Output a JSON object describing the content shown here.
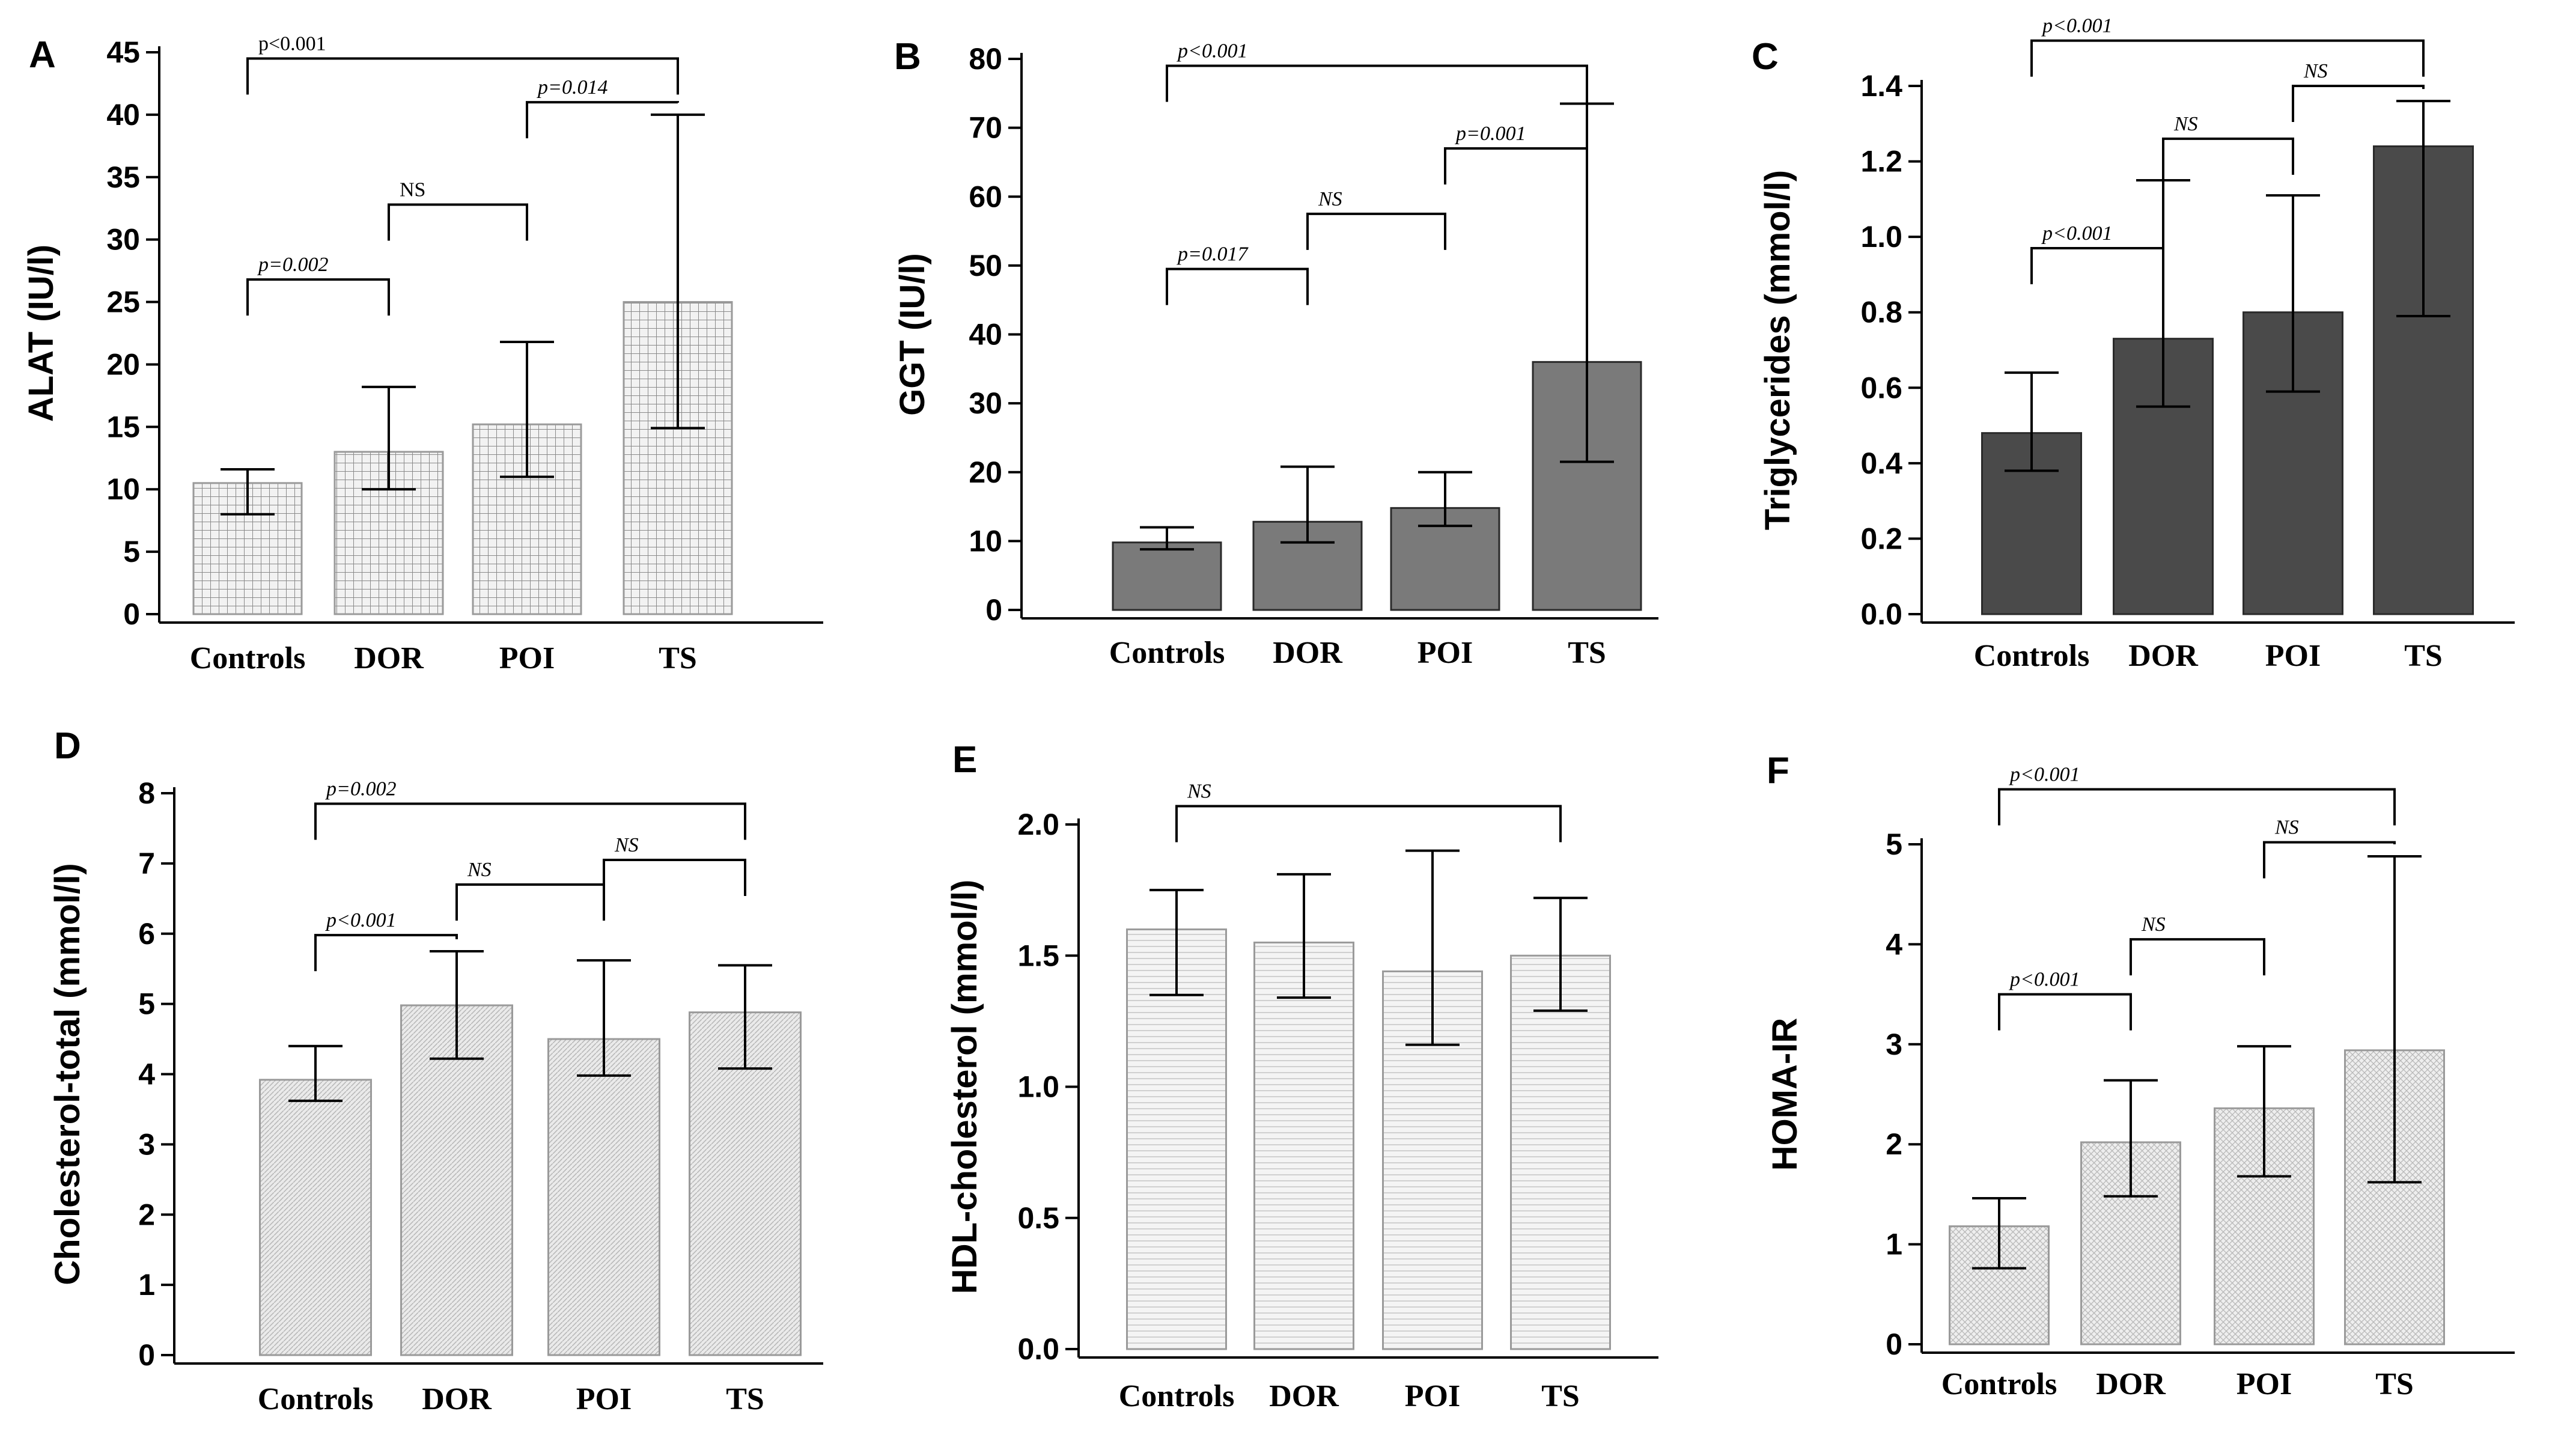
{
  "figure": {
    "note": ""
  },
  "chart_data": [
    {
      "panel": "A",
      "type": "bar",
      "ylabel": "ALAT (IU/l)",
      "categories": [
        "Controls",
        "DOR",
        "POI",
        "TS"
      ],
      "values": [
        10.5,
        13.0,
        15.2,
        25.0
      ],
      "error_low": [
        8.0,
        10.0,
        11.0,
        14.9
      ],
      "error_high": [
        11.6,
        18.2,
        21.8,
        40.0
      ],
      "ylim": [
        0,
        45
      ],
      "yticks": [
        "0",
        "5",
        "10",
        "15",
        "20",
        "25",
        "30",
        "35",
        "40",
        "45"
      ],
      "fill": "grid",
      "bar_color": "#d8d8d8",
      "brackets": [
        {
          "label": "p<0.001",
          "from": 0,
          "to": 3,
          "y": 44.5,
          "italic": false
        },
        {
          "label": "p=0.002",
          "from": 0,
          "to": 1,
          "y": 26.8,
          "italic": true
        },
        {
          "label": "NS",
          "from": 1,
          "to": 2,
          "y": 32.8,
          "italic": false
        },
        {
          "label": "p=0.014",
          "from": 2,
          "to": 3,
          "y": 41.0,
          "italic": true
        }
      ]
    },
    {
      "panel": "B",
      "type": "bar",
      "ylabel": "GGT (IU/l)",
      "categories": [
        "Controls",
        "DOR",
        "POI",
        "TS"
      ],
      "values": [
        9.8,
        12.8,
        14.8,
        36.0
      ],
      "error_low": [
        8.8,
        9.8,
        12.2,
        21.5
      ],
      "error_high": [
        12.0,
        20.8,
        20.0,
        73.5
      ],
      "ylim": [
        0,
        80
      ],
      "yticks": [
        "0",
        "10",
        "20",
        "30",
        "40",
        "50",
        "60",
        "70",
        "80"
      ],
      "fill": "solid",
      "bar_color": "#7a7a7a",
      "brackets": [
        {
          "label": "p<0.001",
          "from": 0,
          "to": 3,
          "y": 79.0,
          "italic": true
        },
        {
          "label": "p=0.017",
          "from": 0,
          "to": 1,
          "y": 49.5,
          "italic": true
        },
        {
          "label": "NS",
          "from": 1,
          "to": 2,
          "y": 57.5,
          "italic": true
        },
        {
          "label": "p=0.001",
          "from": 2,
          "to": 3,
          "y": 67.0,
          "italic": true
        }
      ]
    },
    {
      "panel": "C",
      "type": "bar",
      "ylabel": "Triglycerides (mmol/l)",
      "categories": [
        "Controls",
        "DOR",
        "POI",
        "TS"
      ],
      "values": [
        0.48,
        0.73,
        0.8,
        1.24
      ],
      "error_low": [
        0.38,
        0.55,
        0.59,
        0.79
      ],
      "error_high": [
        0.64,
        1.15,
        1.11,
        1.36
      ],
      "ylim": [
        0,
        1.4
      ],
      "yticks": [
        "0.0",
        "0.2",
        "0.4",
        "0.6",
        "0.8",
        "1.0",
        "1.2",
        "1.4"
      ],
      "fill": "solid",
      "bar_color": "#4a4a4a",
      "brackets": [
        {
          "label": "p<0.001",
          "from": 0,
          "to": 3,
          "y": 1.52,
          "italic": true
        },
        {
          "label": "p<0.001",
          "from": 0,
          "to": 1,
          "y": 0.97,
          "italic": true
        },
        {
          "label": "NS",
          "from": 1,
          "to": 2,
          "y": 1.26,
          "italic": true
        },
        {
          "label": "NS",
          "from": 2,
          "to": 3,
          "y": 1.4,
          "italic": true
        }
      ]
    },
    {
      "panel": "D",
      "type": "bar",
      "ylabel": "Cholesterol-total (mmol/l)",
      "categories": [
        "Controls",
        "DOR",
        "POI",
        "TS"
      ],
      "values": [
        3.92,
        4.98,
        4.5,
        4.88
      ],
      "error_low": [
        3.62,
        4.22,
        3.98,
        4.08
      ],
      "error_high": [
        4.4,
        5.75,
        5.62,
        5.55
      ],
      "ylim": [
        0,
        8
      ],
      "yticks": [
        "0",
        "1",
        "2",
        "3",
        "4",
        "5",
        "6",
        "7",
        "8"
      ],
      "fill": "fine",
      "bar_color": "#e6e6e6",
      "brackets": [
        {
          "label": "p=0.002",
          "from": 0,
          "to": 3,
          "y": 7.85,
          "italic": true
        },
        {
          "label": "p<0.001",
          "from": 0,
          "to": 1,
          "y": 5.98,
          "italic": true
        },
        {
          "label": "NS",
          "from": 1,
          "to": 2,
          "y": 6.7,
          "italic": true
        },
        {
          "label": "NS",
          "from": 2,
          "to": 3,
          "y": 7.05,
          "italic": true
        }
      ]
    },
    {
      "panel": "E",
      "type": "bar",
      "ylabel": "HDL-cholesterol (mmol/l)",
      "categories": [
        "Controls",
        "DOR",
        "POI",
        "TS"
      ],
      "values": [
        1.6,
        1.55,
        1.44,
        1.5
      ],
      "error_low": [
        1.35,
        1.34,
        1.16,
        1.29
      ],
      "error_high": [
        1.75,
        1.81,
        1.9,
        1.72
      ],
      "ylim": [
        0,
        2.0
      ],
      "yticks": [
        "0.0",
        "0.5",
        "1.0",
        "1.5",
        "2.0"
      ],
      "fill": "hlines",
      "bar_color": "#eeeeee",
      "brackets": [
        {
          "label": "NS",
          "from": 0,
          "to": 3,
          "y": 2.07,
          "italic": true
        }
      ]
    },
    {
      "panel": "F",
      "type": "bar",
      "ylabel": "HOMA-IR",
      "categories": [
        "Controls",
        "DOR",
        "POI",
        "TS"
      ],
      "values": [
        1.18,
        2.02,
        2.36,
        2.94
      ],
      "error_low": [
        0.76,
        1.48,
        1.68,
        1.62
      ],
      "error_high": [
        1.46,
        2.64,
        2.98,
        4.88
      ],
      "ylim": [
        0,
        5
      ],
      "yticks": [
        "0",
        "1",
        "2",
        "3",
        "4",
        "5"
      ],
      "fill": "cross",
      "bar_color": "#e8e8e8",
      "brackets": [
        {
          "label": "p<0.001",
          "from": 0,
          "to": 3,
          "y": 5.55,
          "italic": true
        },
        {
          "label": "p<0.001",
          "from": 0,
          "to": 1,
          "y": 3.5,
          "italic": true
        },
        {
          "label": "NS",
          "from": 1,
          "to": 2,
          "y": 4.05,
          "italic": true
        },
        {
          "label": "NS",
          "from": 2,
          "to": 3,
          "y": 5.02,
          "italic": true
        }
      ]
    }
  ]
}
